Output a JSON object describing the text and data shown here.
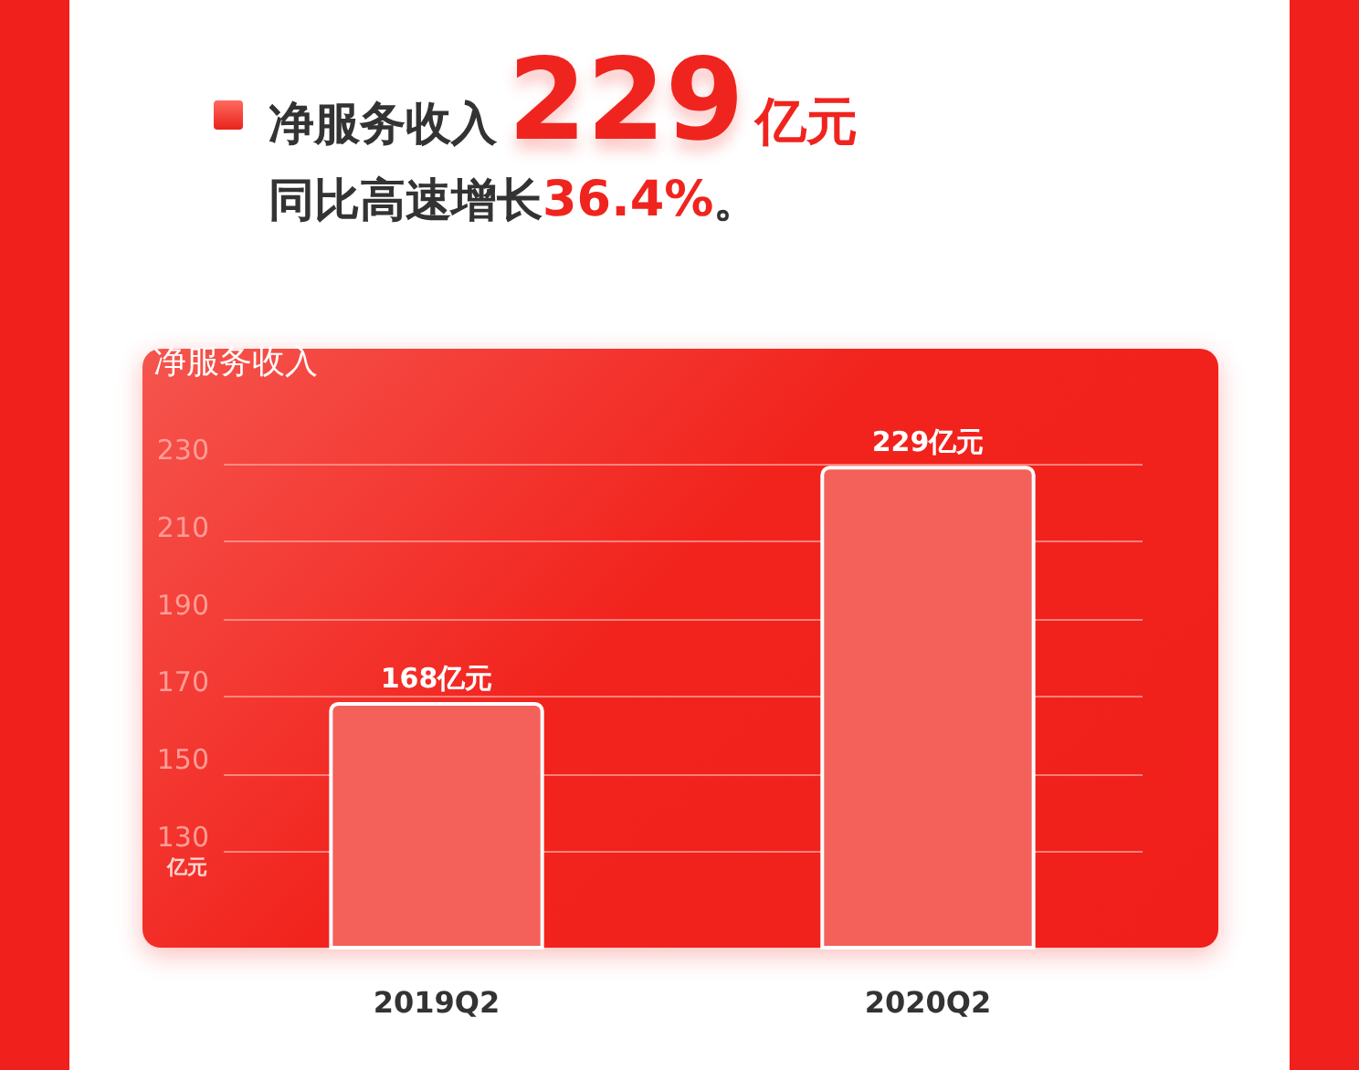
{
  "chart_data": {
    "type": "bar",
    "title": "净服务收入229亿元",
    "subtitle": "同比高速增长36.4%。",
    "ylabel": "亿元",
    "legend_title": "净服务收入",
    "categories": [
      "2019Q2",
      "2020Q2"
    ],
    "values": [
      168,
      229
    ],
    "color": "#f4605a",
    "value_labels": [
      "168亿元",
      "229亿元"
    ],
    "ylim": [
      105,
      230
    ],
    "yticks": [
      130,
      150,
      170,
      190,
      210,
      230
    ],
    "grid": "y"
  }
}
